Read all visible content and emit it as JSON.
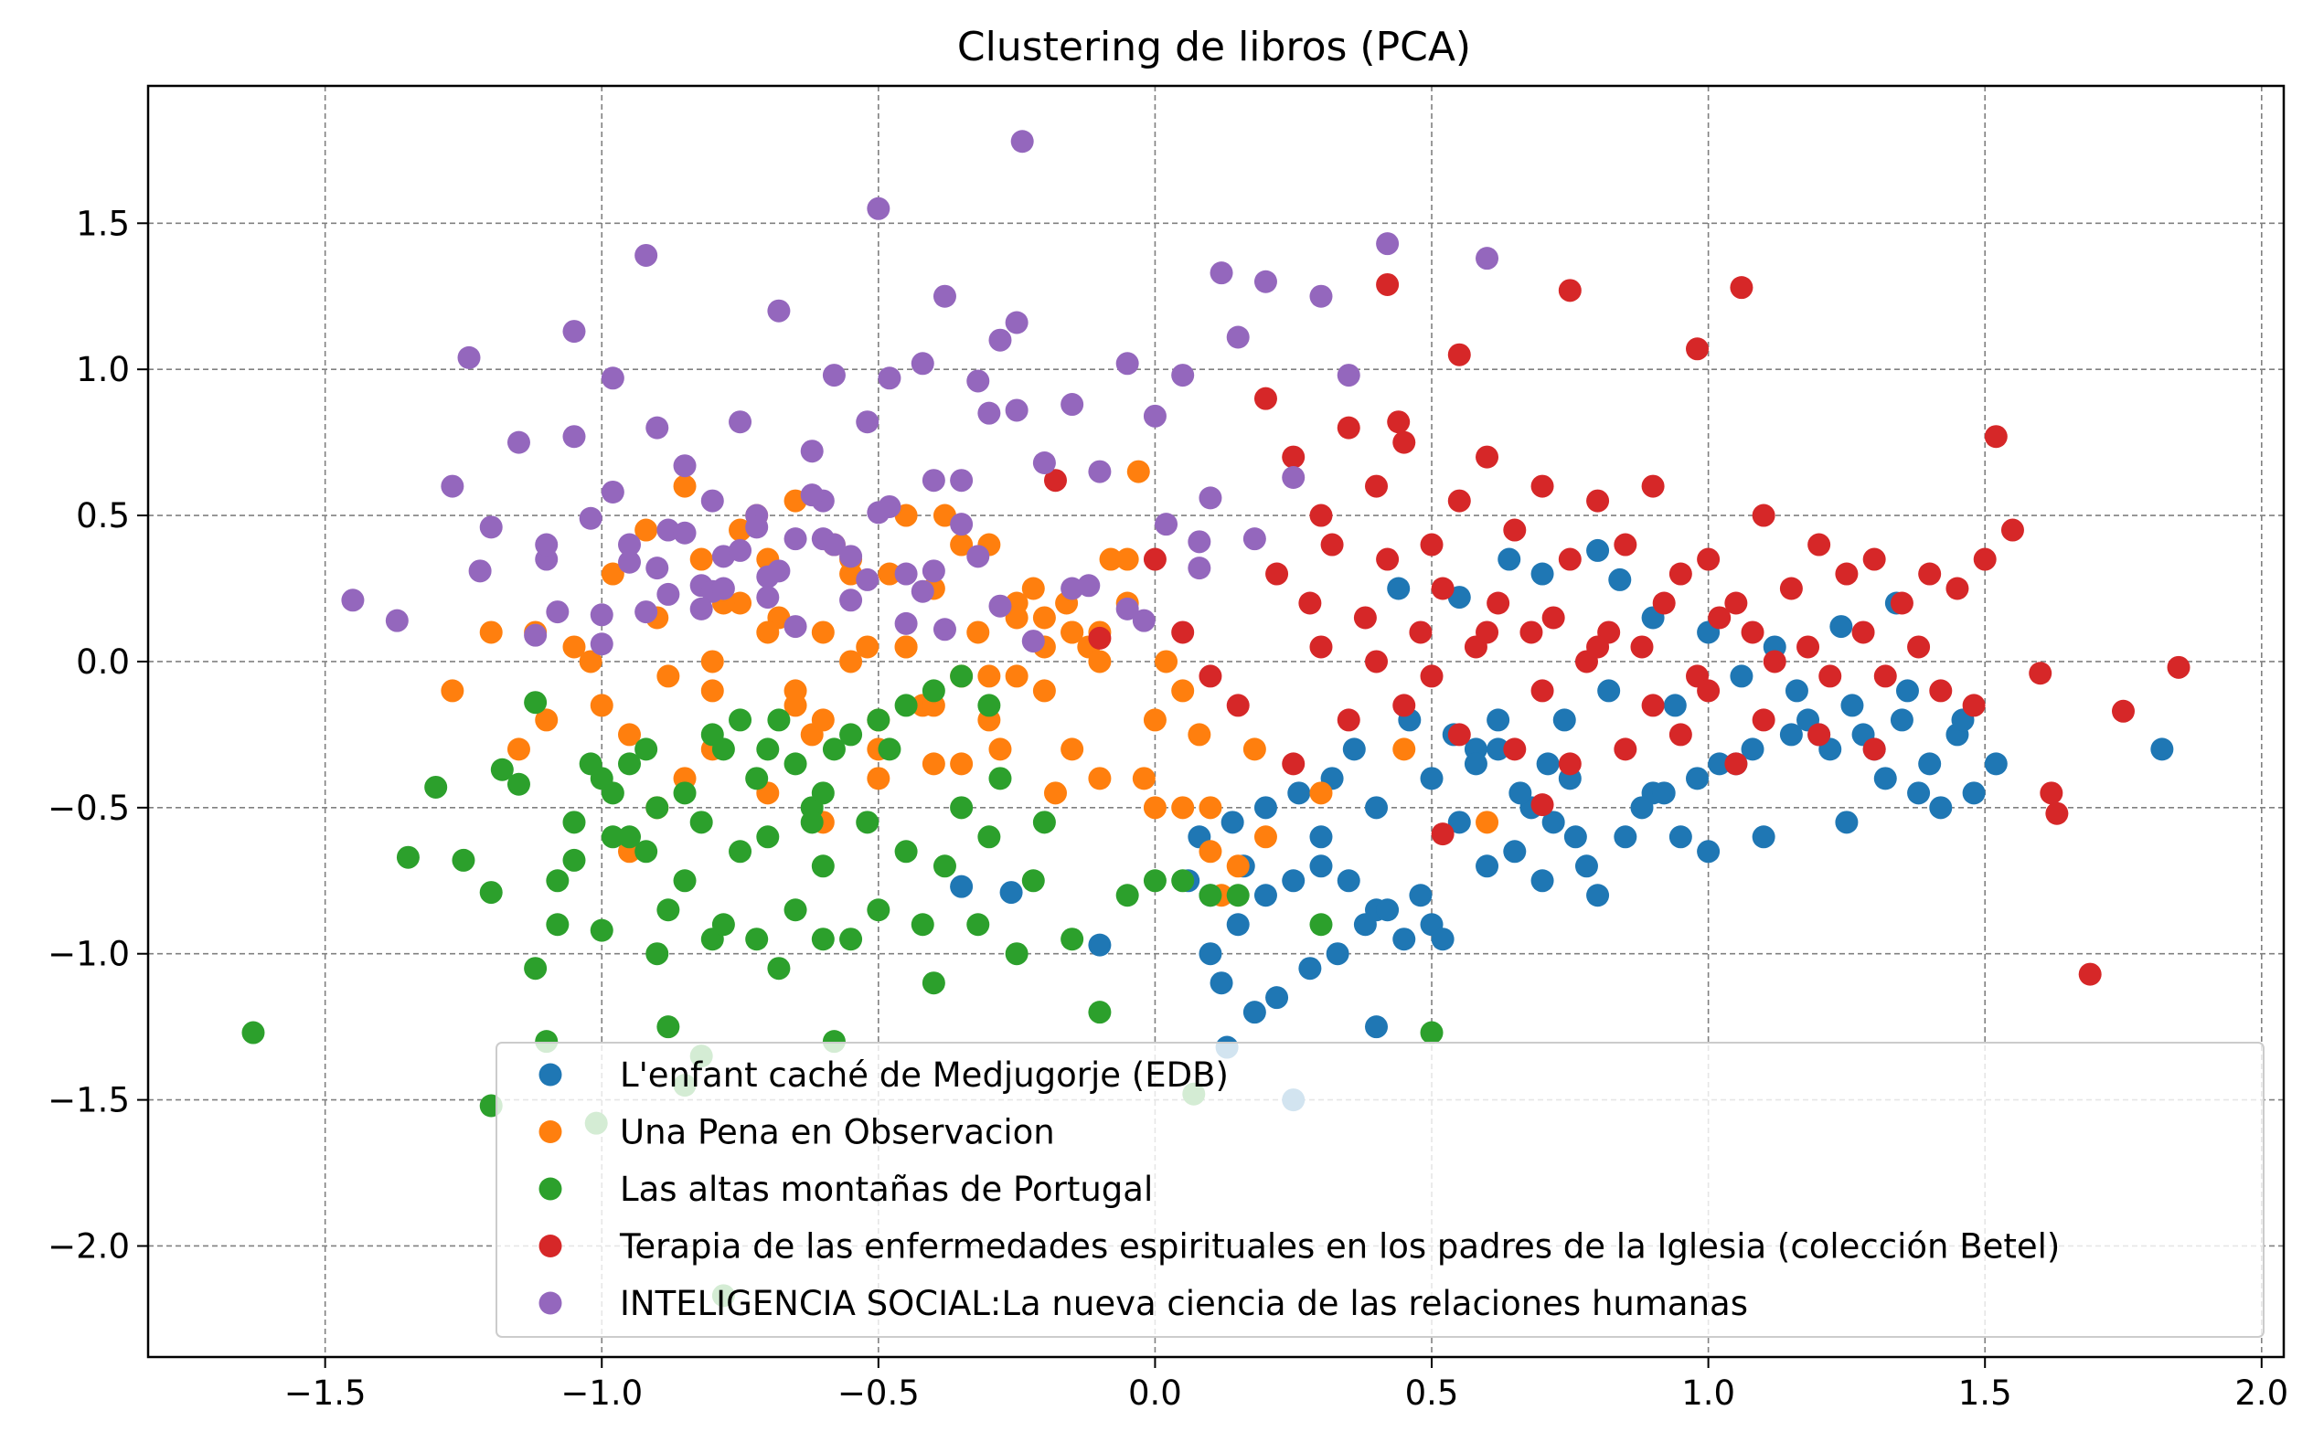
{
  "chart_data": {
    "type": "scatter",
    "title": "Clustering de libros (PCA)",
    "xlabel": "",
    "ylabel": "",
    "xlim": [
      -1.82,
      2.04
    ],
    "ylim": [
      -2.38,
      1.97
    ],
    "xticks": [
      -1.5,
      -1.0,
      -0.5,
      0.0,
      0.5,
      1.0,
      1.5,
      2.0
    ],
    "yticks": [
      -2.0,
      -1.5,
      -1.0,
      -0.5,
      0.0,
      0.5,
      1.0,
      1.5
    ],
    "xtick_labels": [
      "−1.5",
      "−1.0",
      "−0.5",
      "0.0",
      "0.5",
      "1.0",
      "1.5",
      "2.0"
    ],
    "ytick_labels": [
      "−2.0",
      "−1.5",
      "−1.0",
      "−0.5",
      "0.0",
      "0.5",
      "1.0",
      "1.5"
    ],
    "grid": true,
    "legend_position": "lower-center",
    "series": [
      {
        "name": "L'enfant caché de Medjugorje (EDB)",
        "color": "#1f77b4",
        "x": [
          0.58,
          0.62,
          0.71,
          0.75,
          0.68,
          0.55,
          0.9,
          1.05,
          1.2,
          1.3,
          1.35,
          1.4,
          1.45,
          0.95,
          1.0,
          1.1,
          1.25,
          0.8,
          0.5,
          0.45,
          0.4,
          0.35,
          0.3,
          0.25,
          0.2,
          0.15,
          0.1,
          0.12,
          0.18,
          0.22,
          0.28,
          0.33,
          0.38,
          0.42,
          0.48,
          0.52,
          0.6,
          0.65,
          0.7,
          0.78,
          0.85,
          0.88,
          0.92,
          0.98,
          1.02,
          1.08,
          1.15,
          1.18,
          1.22,
          1.28,
          1.32,
          1.38,
          1.42,
          1.48,
          1.52,
          0.72,
          0.76,
          0.66,
          0.58,
          0.54,
          0.46,
          0.36,
          0.32,
          0.26,
          0.2,
          0.14,
          0.08,
          0.06,
          0.1,
          0.16,
          0.3,
          0.4,
          0.5,
          0.62,
          0.74,
          0.82,
          0.94,
          1.06,
          1.16,
          1.26,
          1.36,
          1.46,
          1.82,
          0.25,
          0.13,
          -0.26,
          -0.35,
          -0.1,
          0.4,
          0.55,
          0.7,
          0.8,
          0.9,
          1.0,
          1.12,
          1.24,
          1.34,
          0.44,
          0.64,
          0.84
        ],
        "y": [
          -0.3,
          -0.2,
          -0.35,
          -0.4,
          -0.5,
          -0.55,
          -0.45,
          -0.35,
          -0.25,
          -0.3,
          -0.2,
          -0.35,
          -0.25,
          -0.6,
          -0.65,
          -0.6,
          -0.55,
          -0.8,
          -0.9,
          -0.95,
          -0.85,
          -0.75,
          -0.7,
          -0.75,
          -0.8,
          -0.9,
          -1.0,
          -1.1,
          -1.2,
          -1.15,
          -1.05,
          -1.0,
          -0.9,
          -0.85,
          -0.8,
          -0.95,
          -0.7,
          -0.65,
          -0.75,
          -0.7,
          -0.6,
          -0.5,
          -0.45,
          -0.4,
          -0.35,
          -0.3,
          -0.25,
          -0.2,
          -0.3,
          -0.25,
          -0.4,
          -0.45,
          -0.5,
          -0.45,
          -0.35,
          -0.55,
          -0.6,
          -0.45,
          -0.35,
          -0.25,
          -0.2,
          -0.3,
          -0.4,
          -0.45,
          -0.5,
          -0.55,
          -0.6,
          -0.75,
          -0.8,
          -0.7,
          -0.6,
          -0.5,
          -0.4,
          -0.3,
          -0.2,
          -0.1,
          -0.15,
          -0.05,
          -0.1,
          -0.15,
          -0.1,
          -0.2,
          -0.3,
          -1.5,
          -1.32,
          -0.79,
          -0.77,
          -0.97,
          -1.25,
          0.22,
          0.3,
          0.38,
          0.15,
          0.1,
          0.05,
          0.12,
          0.2,
          0.25,
          0.35,
          0.28
        ],
        "note": "approximate"
      },
      {
        "name": "Una Pena en Observacion",
        "color": "#ff7f0e",
        "x": [
          -1.27,
          -1.2,
          -1.15,
          -1.1,
          -1.05,
          -1.0,
          -0.95,
          -0.9,
          -0.85,
          -0.8,
          -0.75,
          -0.7,
          -0.65,
          -0.6,
          -0.55,
          -0.5,
          -0.45,
          -0.4,
          -0.35,
          -0.3,
          -0.25,
          -0.2,
          -0.15,
          -0.1,
          -0.05,
          0.0,
          0.05,
          0.1,
          0.15,
          0.2,
          -0.98,
          -0.92,
          -0.88,
          -0.82,
          -0.78,
          -0.72,
          -0.68,
          -0.62,
          -0.58,
          -0.52,
          -0.48,
          -0.42,
          -0.38,
          -0.32,
          -0.28,
          -0.22,
          -0.18,
          -0.12,
          -0.08,
          -0.02,
          0.02,
          0.08,
          0.12,
          0.18,
          -0.9,
          -0.8,
          -0.7,
          -0.6,
          -0.5,
          -0.4,
          -0.3,
          -0.2,
          -0.1,
          0.0,
          0.1,
          -0.85,
          -0.75,
          -0.65,
          -0.55,
          -0.45,
          -0.35,
          -0.25,
          -0.15,
          -0.05,
          0.05,
          -0.6,
          -0.5,
          -0.4,
          -0.3,
          -0.2,
          -0.1,
          -0.03,
          -0.16,
          0.6,
          0.45,
          0.3,
          -0.8,
          -0.95,
          -0.7,
          -0.55,
          -0.65,
          -0.45,
          -0.35,
          -0.25,
          -0.15,
          -1.12,
          -1.02
        ],
        "y": [
          -0.1,
          0.1,
          -0.3,
          -0.2,
          0.05,
          -0.15,
          -0.25,
          0.15,
          -0.4,
          0.0,
          0.2,
          0.35,
          -0.1,
          0.1,
          0.3,
          -0.2,
          0.05,
          0.25,
          -0.35,
          0.4,
          -0.05,
          0.15,
          -0.3,
          0.1,
          0.2,
          -0.2,
          -0.1,
          -0.5,
          -0.7,
          -0.6,
          0.3,
          0.45,
          -0.05,
          0.35,
          0.2,
          0.5,
          0.15,
          -0.25,
          0.4,
          0.05,
          0.3,
          -0.15,
          0.5,
          0.1,
          -0.3,
          0.25,
          -0.45,
          0.05,
          0.35,
          -0.4,
          0.0,
          -0.25,
          -0.8,
          -0.3,
          -0.5,
          -0.3,
          -0.45,
          -0.55,
          -0.4,
          -0.35,
          -0.2,
          -0.1,
          -0.4,
          -0.5,
          -0.65,
          0.6,
          0.45,
          0.55,
          0.35,
          0.5,
          0.4,
          0.2,
          0.1,
          0.35,
          -0.5,
          -0.2,
          -0.3,
          -0.15,
          -0.05,
          0.05,
          0.0,
          0.65,
          0.2,
          -0.55,
          -0.3,
          -0.45,
          -0.1,
          -0.65,
          0.1,
          0.0,
          -0.15,
          0.05,
          -0.05,
          0.15,
          0.1,
          0.1,
          0.0
        ],
        "note": "approximate"
      },
      {
        "name": "Las altas montañas de Portugal",
        "color": "#2ca02c",
        "x": [
          -1.63,
          -1.35,
          -1.3,
          -1.25,
          -1.2,
          -1.18,
          -1.15,
          -1.12,
          -1.1,
          -1.08,
          -1.05,
          -1.02,
          -1.0,
          -0.98,
          -0.95,
          -0.92,
          -0.9,
          -0.88,
          -0.85,
          -0.82,
          -0.8,
          -0.78,
          -0.75,
          -0.72,
          -0.7,
          -0.68,
          -0.65,
          -0.62,
          -0.6,
          -0.58,
          -0.55,
          -0.52,
          -0.5,
          -0.48,
          -0.45,
          -0.42,
          -0.4,
          -0.38,
          -0.35,
          -0.32,
          -0.3,
          -0.28,
          -0.25,
          -0.22,
          -0.2,
          -0.15,
          -0.1,
          -0.05,
          0.0,
          0.05,
          0.1,
          0.15,
          0.3,
          0.5,
          -1.2,
          -1.12,
          -1.08,
          -1.0,
          -0.95,
          -0.9,
          -0.85,
          -0.8,
          -0.75,
          -0.7,
          -0.65,
          -0.6,
          -0.55,
          -0.5,
          -0.45,
          -0.4,
          -0.35,
          -0.3,
          -1.05,
          -0.98,
          -0.92,
          -0.88,
          -0.82,
          -0.78,
          -0.72,
          -0.68,
          -0.62,
          -0.58,
          -1.01,
          -0.78,
          0.07,
          -0.85,
          -0.6
        ],
        "y": [
          -1.27,
          -0.67,
          -0.43,
          -0.68,
          -0.79,
          -0.37,
          -0.42,
          -0.14,
          -1.3,
          -0.9,
          -0.68,
          -0.35,
          -0.92,
          -0.45,
          -0.6,
          -0.3,
          -1.0,
          -0.85,
          -0.75,
          -0.55,
          -0.95,
          -0.3,
          -0.65,
          -0.4,
          -0.6,
          -0.2,
          -0.85,
          -0.5,
          -0.7,
          -0.3,
          -0.95,
          -0.55,
          -0.85,
          -0.3,
          -0.65,
          -0.9,
          -1.1,
          -0.7,
          -0.5,
          -0.9,
          -0.6,
          -0.4,
          -1.0,
          -0.75,
          -0.55,
          -0.95,
          -1.2,
          -0.8,
          -0.75,
          -0.75,
          -0.8,
          -0.8,
          -0.9,
          -1.27,
          -1.52,
          -1.05,
          -0.75,
          -0.4,
          -0.35,
          -0.5,
          -0.45,
          -0.25,
          -0.2,
          -0.3,
          -0.35,
          -0.45,
          -0.25,
          -0.2,
          -0.15,
          -0.1,
          -0.05,
          -0.15,
          -0.55,
          -0.6,
          -0.65,
          -1.25,
          -1.35,
          -0.9,
          -0.95,
          -1.05,
          -0.55,
          -1.3,
          -1.58,
          -2.17,
          -1.48,
          -1.45,
          -0.95
        ],
        "note": "approximate"
      },
      {
        "name": "Terapia de las enfermedades espirituales en los padres de la Iglesia (colección Betel)",
        "color": "#d62728",
        "x": [
          0.2,
          0.25,
          0.3,
          0.35,
          0.4,
          0.45,
          0.5,
          0.55,
          0.6,
          0.65,
          0.7,
          0.75,
          0.8,
          0.85,
          0.9,
          0.95,
          1.0,
          1.05,
          1.1,
          1.15,
          1.2,
          1.25,
          1.3,
          1.35,
          1.4,
          1.45,
          1.5,
          1.55,
          0.22,
          0.28,
          0.32,
          0.38,
          0.42,
          0.48,
          0.52,
          0.58,
          0.62,
          0.68,
          0.72,
          0.78,
          0.82,
          0.88,
          0.92,
          0.98,
          1.02,
          1.08,
          1.12,
          1.18,
          1.22,
          1.28,
          1.32,
          1.38,
          1.42,
          1.48,
          0.3,
          0.4,
          0.5,
          0.6,
          0.7,
          0.8,
          0.9,
          1.0,
          1.1,
          1.2,
          1.3,
          0.35,
          0.45,
          0.55,
          0.65,
          0.75,
          0.85,
          0.95,
          1.05,
          0.15,
          0.1,
          0.05,
          0.0,
          -0.1,
          -0.18,
          0.42,
          0.75,
          1.06,
          1.52,
          1.6,
          1.62,
          1.63,
          1.69,
          1.75,
          1.85,
          0.98,
          0.55,
          0.52,
          0.7,
          0.44,
          0.25
        ],
        "y": [
          0.9,
          0.7,
          0.5,
          0.8,
          0.6,
          0.75,
          0.4,
          0.55,
          0.7,
          0.45,
          0.6,
          0.35,
          0.55,
          0.4,
          0.6,
          0.3,
          0.35,
          0.2,
          0.5,
          0.25,
          0.4,
          0.3,
          0.35,
          0.2,
          0.3,
          0.25,
          0.35,
          0.45,
          0.3,
          0.2,
          0.4,
          0.15,
          0.35,
          0.1,
          0.25,
          0.05,
          0.2,
          0.1,
          0.15,
          0.0,
          0.1,
          0.05,
          0.2,
          -0.05,
          0.15,
          0.1,
          0.0,
          0.05,
          -0.05,
          0.1,
          -0.05,
          0.05,
          -0.1,
          -0.15,
          0.05,
          0.0,
          -0.05,
          0.1,
          -0.1,
          0.05,
          -0.15,
          -0.1,
          -0.2,
          -0.25,
          -0.3,
          -0.2,
          -0.15,
          -0.25,
          -0.3,
          -0.35,
          -0.3,
          -0.25,
          -0.35,
          -0.15,
          -0.05,
          0.1,
          0.35,
          0.08,
          0.62,
          1.29,
          1.27,
          1.28,
          0.77,
          -0.04,
          -0.45,
          -0.52,
          -1.07,
          -0.17,
          -0.02,
          1.07,
          1.05,
          -0.59,
          -0.49,
          0.82,
          -0.35
        ],
        "note": "approximate"
      },
      {
        "name": "INTELIGENCIA SOCIAL:La nueva ciencia de las relaciones humanas",
        "color": "#9467bd",
        "x": [
          -1.45,
          -1.37,
          -1.27,
          -1.24,
          -1.22,
          -1.2,
          -1.15,
          -1.12,
          -1.1,
          -1.08,
          -1.05,
          -1.02,
          -1.0,
          -0.98,
          -0.95,
          -0.92,
          -0.9,
          -0.88,
          -0.85,
          -0.82,
          -0.8,
          -0.78,
          -0.75,
          -0.72,
          -0.7,
          -0.68,
          -0.65,
          -0.62,
          -0.6,
          -0.58,
          -0.55,
          -0.52,
          -0.5,
          -0.48,
          -0.45,
          -0.42,
          -0.4,
          -0.38,
          -0.35,
          -0.32,
          -0.3,
          -0.28,
          -0.25,
          -0.2,
          -0.15,
          -0.1,
          -0.05,
          0.0,
          0.05,
          0.1,
          0.15,
          0.2,
          0.25,
          0.3,
          0.35,
          0.42,
          0.6,
          -0.24,
          -0.5,
          -0.92,
          -1.05,
          -0.98,
          -0.9,
          -0.85,
          -0.8,
          -0.75,
          -0.7,
          -0.65,
          -0.6,
          -0.55,
          -0.45,
          -0.4,
          -0.35,
          -0.25,
          -0.15,
          -0.05,
          0.08,
          0.12,
          -1.1,
          -1.0,
          -0.95,
          -0.88,
          -0.82,
          -0.78,
          -0.72,
          -0.68,
          -0.62,
          -0.58,
          -0.52,
          -0.48,
          -0.42,
          -0.38,
          -0.32,
          -0.28,
          -0.22,
          -0.12,
          -0.02,
          0.02,
          0.08,
          0.18
        ],
        "y": [
          0.21,
          0.14,
          0.6,
          1.04,
          0.31,
          0.46,
          0.75,
          0.09,
          0.35,
          0.17,
          0.77,
          0.49,
          0.06,
          0.97,
          0.4,
          0.17,
          0.8,
          0.45,
          0.67,
          0.26,
          0.55,
          0.36,
          0.82,
          0.5,
          0.29,
          1.2,
          0.42,
          0.72,
          0.55,
          0.98,
          0.36,
          0.82,
          0.51,
          0.97,
          0.3,
          1.02,
          0.62,
          1.25,
          0.47,
          0.96,
          0.85,
          1.1,
          1.16,
          0.68,
          0.88,
          0.65,
          1.02,
          0.84,
          0.98,
          0.56,
          1.11,
          1.3,
          0.63,
          1.25,
          0.98,
          1.43,
          1.38,
          1.78,
          1.55,
          1.39,
          1.13,
          0.58,
          0.32,
          0.44,
          0.24,
          0.38,
          0.22,
          0.12,
          0.42,
          0.21,
          0.13,
          0.31,
          0.62,
          0.86,
          0.25,
          0.18,
          0.41,
          1.33,
          0.4,
          0.16,
          0.34,
          0.23,
          0.18,
          0.25,
          0.46,
          0.31,
          0.57,
          0.4,
          0.28,
          0.53,
          0.24,
          0.11,
          0.36,
          0.19,
          0.07,
          0.26,
          0.14,
          0.47,
          0.32,
          0.42
        ],
        "note": "approximate"
      }
    ]
  }
}
